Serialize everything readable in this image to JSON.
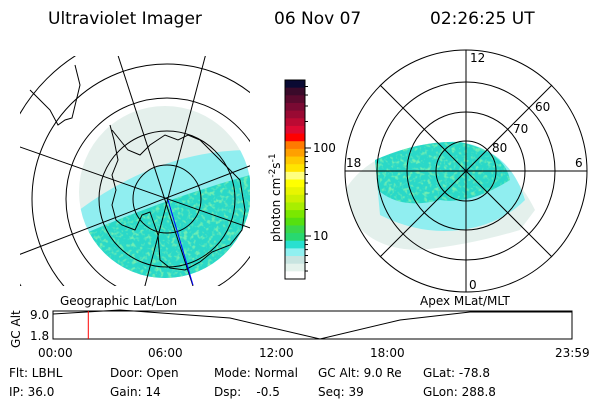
{
  "header": {
    "instrument": "Ultraviolet Imager",
    "date": "06 Nov 07",
    "time": "02:26:25 UT"
  },
  "left_map": {
    "label": "Geographic Lat/Lon"
  },
  "right_map": {
    "label": "Apex MLat/MLT",
    "mlt_labels": {
      "top": "12",
      "right": "6",
      "bottom": "0",
      "left": "18"
    },
    "lat_labels": [
      "80",
      "70",
      "60"
    ]
  },
  "colorbar": {
    "unit_text": "photon cm",
    "unit_exp1": "-2",
    "unit_s": "s",
    "unit_exp2": "-1",
    "tick_labels": [
      "100",
      "10"
    ],
    "scale": "log",
    "colors": [
      "#0a0a33",
      "#3a0a2a",
      "#5a0a2e",
      "#7a0a33",
      "#990a33",
      "#bb0a33",
      "#dd0a33",
      "#ff0000",
      "#ff7a00",
      "#ffa000",
      "#ffc800",
      "#ffe400",
      "#ffff80",
      "#ffff00",
      "#e8f500",
      "#ccf000",
      "#a8ee00",
      "#7ae800",
      "#55e010",
      "#3ad84a",
      "#28d870",
      "#28e0d0",
      "#90f0f0",
      "#c8e4e0",
      "#e4f2ec",
      "#ffffff"
    ]
  },
  "timeline": {
    "axis_label": "GC Alt",
    "y_ticks": [
      "9.0",
      "1.8"
    ],
    "x_ticks": [
      "00:00",
      "06:00",
      "12:00",
      "18:00",
      "23:59"
    ],
    "current_fraction": 0.068,
    "marker_color": "#ff0000"
  },
  "info": {
    "row1": [
      "Flt: LBHL",
      "Door: Open",
      "Mode: Normal",
      "GC Alt: 9.0 Re",
      "GLat: -78.8"
    ],
    "row2": [
      "IP: 36.0",
      "Gain: 14",
      "Dsp:    -0.5",
      "Seq: 39",
      "GLon: 288.8"
    ]
  }
}
